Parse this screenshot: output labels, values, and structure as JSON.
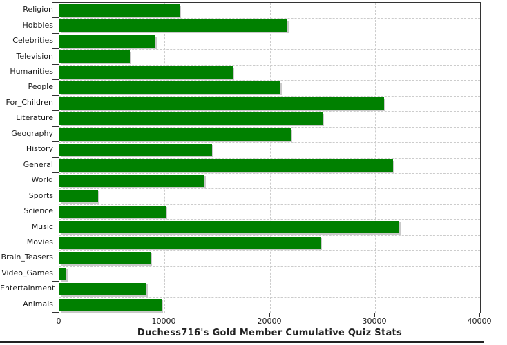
{
  "chart_data": {
    "type": "bar",
    "orientation": "horizontal",
    "title": "Duchess716's Gold Member Cumulative Quiz Stats",
    "categories": [
      "Religion",
      "Hobbies",
      "Celebrities",
      "Television",
      "Humanities",
      "People",
      "For_Children",
      "Literature",
      "Geography",
      "History",
      "General",
      "World",
      "Sports",
      "Science",
      "Music",
      "Movies",
      "Brain_Teasers",
      "Video_Games",
      "Entertainment",
      "Animals"
    ],
    "values": [
      11400,
      21700,
      9100,
      6700,
      16500,
      21000,
      30900,
      25000,
      22000,
      14500,
      31700,
      13800,
      3700,
      10100,
      32300,
      24800,
      8700,
      650,
      8300,
      9700
    ],
    "xlabel": "",
    "ylabel": "",
    "xlim": [
      0,
      40000
    ],
    "x_ticks": [
      0,
      10000,
      20000,
      30000,
      40000
    ],
    "x_tick_labels": [
      "0",
      "10000",
      "20000",
      "30000",
      "40000"
    ],
    "grid": "dashed",
    "legend_position": "none",
    "colors": {
      "bar": "#008000",
      "bar_shadow": "#c9c9c9",
      "gridline": "#cccccc",
      "axis": "#333333",
      "text": "#1a1a1a"
    }
  }
}
